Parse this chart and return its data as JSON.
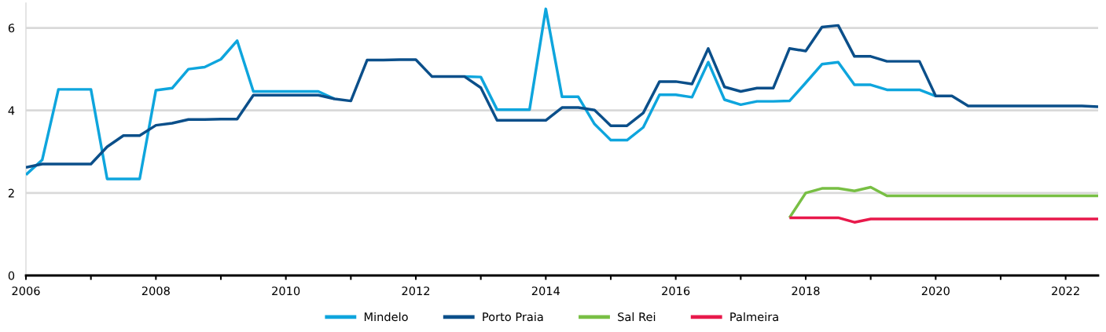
{
  "chart_data": {
    "type": "line",
    "x": [
      2006,
      2006.25,
      2006.5,
      2006.75,
      2007,
      2007.25,
      2007.5,
      2007.75,
      2008,
      2008.25,
      2008.5,
      2008.75,
      2009,
      2009.25,
      2009.5,
      2009.75,
      2010,
      2010.25,
      2010.5,
      2010.75,
      2011,
      2011.25,
      2011.5,
      2011.75,
      2012,
      2012.25,
      2012.5,
      2012.75,
      2013,
      2013.25,
      2013.5,
      2013.75,
      2014,
      2014.25,
      2014.5,
      2014.75,
      2015,
      2015.25,
      2015.5,
      2015.75,
      2016,
      2016.25,
      2016.5,
      2016.75,
      2017,
      2017.25,
      2017.5,
      2017.75,
      2018,
      2018.25,
      2018.5,
      2018.75,
      2019,
      2019.25,
      2019.5,
      2019.75,
      2020,
      2020.25,
      2020.5,
      2020.75,
      2021,
      2021.25,
      2021.5,
      2021.75,
      2022,
      2022.25,
      2022.5
    ],
    "series": [
      {
        "name": "Mindelo",
        "color": "#0ea5dd",
        "values": [
          2.44,
          2.8,
          4.51,
          4.51,
          4.51,
          2.34,
          2.34,
          2.34,
          4.49,
          4.54,
          5.0,
          5.05,
          5.24,
          5.69,
          4.46,
          4.46,
          4.46,
          4.46,
          4.46,
          4.28,
          null,
          null,
          null,
          null,
          null,
          null,
          null,
          4.82,
          4.81,
          4.02,
          4.02,
          4.02,
          6.46,
          4.33,
          4.33,
          3.67,
          3.28,
          3.28,
          3.59,
          4.38,
          4.38,
          4.32,
          5.17,
          4.26,
          4.14,
          4.22,
          4.22,
          4.23,
          4.67,
          5.12,
          5.17,
          4.62,
          4.62,
          4.5,
          4.5,
          4.5,
          4.35,
          null,
          null,
          null,
          null,
          null,
          null,
          null,
          null,
          null,
          null
        ]
      },
      {
        "name": "Porto Praia",
        "color": "#0b4f8a",
        "values": [
          2.62,
          2.7,
          2.7,
          2.7,
          2.7,
          3.12,
          3.39,
          3.39,
          3.64,
          3.69,
          3.78,
          3.78,
          3.79,
          3.79,
          4.37,
          4.37,
          4.37,
          4.37,
          4.37,
          4.28,
          4.23,
          5.22,
          5.22,
          5.23,
          5.23,
          4.82,
          4.82,
          4.82,
          4.55,
          3.76,
          3.76,
          3.76,
          3.76,
          4.07,
          4.07,
          4.01,
          3.63,
          3.63,
          3.94,
          4.7,
          4.7,
          4.64,
          5.5,
          4.57,
          4.46,
          4.54,
          4.54,
          5.5,
          5.44,
          6.02,
          6.06,
          5.31,
          5.31,
          5.19,
          5.19,
          5.19,
          4.35,
          4.35,
          4.11,
          4.11,
          4.11,
          4.11,
          4.11,
          4.11,
          4.11,
          4.11,
          4.09
        ]
      },
      {
        "name": "Sal Rei",
        "color": "#78bf44",
        "x": [
          2017.75,
          2018,
          2018.25,
          2018.5,
          2018.75,
          2019,
          2019.25,
          2019.5,
          2019.75,
          2020,
          2020.25,
          2020.5,
          2020.75,
          2021,
          2021.25,
          2021.5,
          2021.75,
          2022,
          2022.25,
          2022.5
        ],
        "values": [
          1.4,
          2.0,
          2.11,
          2.11,
          2.05,
          2.14,
          1.93,
          1.93,
          1.93,
          1.93,
          1.93,
          1.93,
          1.93,
          1.93,
          1.93,
          1.93,
          1.93,
          1.93,
          1.93,
          1.93
        ]
      },
      {
        "name": "Palmeira",
        "color": "#e8194b",
        "x": [
          2017.75,
          2018,
          2018.25,
          2018.5,
          2018.75,
          2019,
          2019.25,
          2019.5,
          2019.75,
          2020,
          2020.25,
          2020.5,
          2020.75,
          2021,
          2021.25,
          2021.5,
          2021.75,
          2022,
          2022.25,
          2022.5
        ],
        "values": [
          1.4,
          1.4,
          1.4,
          1.4,
          1.29,
          1.37,
          1.37,
          1.37,
          1.37,
          1.37,
          1.37,
          1.37,
          1.37,
          1.37,
          1.37,
          1.37,
          1.37,
          1.37,
          1.37,
          1.37
        ]
      }
    ],
    "xlim": [
      2006,
      2022.5
    ],
    "xticks": [
      2006,
      {
        "value": 2007,
        "label": null
      },
      2008,
      {
        "value": 2009,
        "label": null
      },
      2010,
      {
        "value": 2011,
        "label": null
      },
      2012,
      {
        "value": 2013,
        "label": null
      },
      2014,
      {
        "value": 2015,
        "label": null
      },
      2016,
      {
        "value": 2017,
        "label": null
      },
      2018,
      {
        "value": 2019,
        "label": null
      },
      2020,
      {
        "value": 2021,
        "label": null
      },
      2022
    ],
    "ylim": [
      0,
      6.6
    ],
    "yticks": [
      0,
      2,
      4,
      6
    ],
    "grid": "y",
    "legend": "bottom"
  }
}
